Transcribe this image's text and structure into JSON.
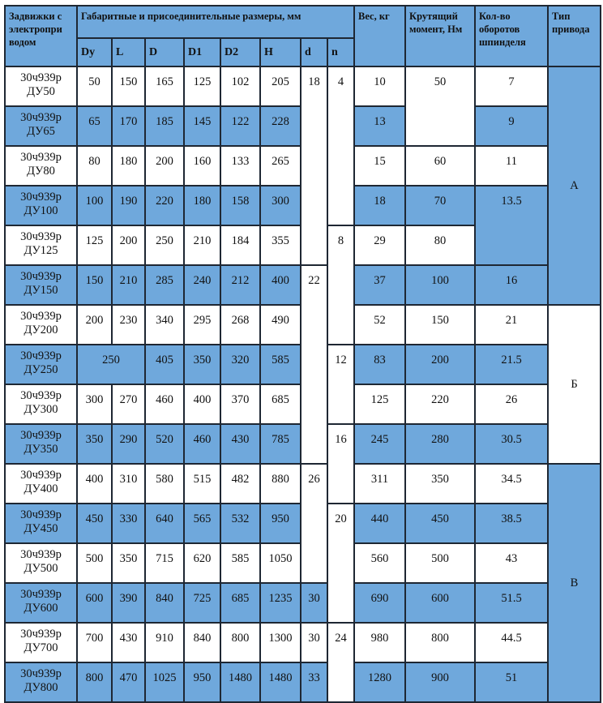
{
  "colors": {
    "header_bg": "#6fa8dc",
    "stripe_bg": "#6fa8dc",
    "row_bg": "#ffffff",
    "border": "#1e2733"
  },
  "header": {
    "name": "Задвижки с электропри водом",
    "dims": "Габаритные и присоединительные размеры, мм",
    "dim_cols": [
      "Dy",
      "L",
      "D",
      "D1",
      "D2",
      "H",
      "d",
      "n"
    ],
    "weight": "Вес, кг",
    "torque": "Крутящий момент, Нм",
    "turns": "Кол-во оборотов шпинделя",
    "drive": "Тип привода"
  },
  "rows": [
    {
      "name": [
        "30ч939р",
        "ДУ50"
      ],
      "cells": [
        {
          "v": "50"
        },
        {
          "v": "150"
        },
        {
          "v": "165"
        },
        {
          "v": "125"
        },
        {
          "v": "102"
        },
        {
          "v": "205"
        },
        {
          "v": "18",
          "rs": 5,
          "blue": false
        },
        {
          "v": "4",
          "rs": 4,
          "blue": false
        },
        {
          "v": "10"
        },
        {
          "v": "50",
          "rs": 2,
          "blue": false
        },
        {
          "v": "7"
        },
        {
          "v": "А",
          "rs": 6,
          "blue": true,
          "type": true
        }
      ]
    },
    {
      "name": [
        "30ч939р",
        "ДУ65"
      ],
      "cells": [
        {
          "v": "65"
        },
        {
          "v": "170"
        },
        {
          "v": "185"
        },
        {
          "v": "145"
        },
        {
          "v": "122"
        },
        {
          "v": "228"
        },
        {
          "v": "13"
        },
        {
          "v": "9"
        }
      ]
    },
    {
      "name": [
        "30ч939р",
        "ДУ80"
      ],
      "cells": [
        {
          "v": "80"
        },
        {
          "v": "180"
        },
        {
          "v": "200"
        },
        {
          "v": "160"
        },
        {
          "v": "133"
        },
        {
          "v": "265"
        },
        {
          "v": "15"
        },
        {
          "v": "60"
        },
        {
          "v": "11"
        }
      ]
    },
    {
      "name": [
        "30ч939р",
        "ДУ100"
      ],
      "cells": [
        {
          "v": "100"
        },
        {
          "v": "190"
        },
        {
          "v": "220"
        },
        {
          "v": "180"
        },
        {
          "v": "158"
        },
        {
          "v": "300"
        },
        {
          "v": "18"
        },
        {
          "v": "70"
        },
        {
          "v": "13.5",
          "rs": 2,
          "blue": true
        }
      ]
    },
    {
      "name": [
        "30ч939р",
        "ДУ125"
      ],
      "cells": [
        {
          "v": "125"
        },
        {
          "v": "200"
        },
        {
          "v": "250"
        },
        {
          "v": "210"
        },
        {
          "v": "184"
        },
        {
          "v": "355"
        },
        {
          "v": "8",
          "rs": 3,
          "blue": false
        },
        {
          "v": "29"
        },
        {
          "v": "80"
        }
      ]
    },
    {
      "name": [
        "30ч939р",
        "ДУ150"
      ],
      "cells": [
        {
          "v": "150"
        },
        {
          "v": "210"
        },
        {
          "v": "285"
        },
        {
          "v": "240"
        },
        {
          "v": "212"
        },
        {
          "v": "400"
        },
        {
          "v": "22",
          "rs": 5,
          "blue": false
        },
        {
          "v": "37"
        },
        {
          "v": "100"
        },
        {
          "v": "16"
        }
      ]
    },
    {
      "name": [
        "30ч939р",
        "ДУ200"
      ],
      "cells": [
        {
          "v": "200"
        },
        {
          "v": "230"
        },
        {
          "v": "340"
        },
        {
          "v": "295"
        },
        {
          "v": "268"
        },
        {
          "v": "490"
        },
        {
          "v": "52"
        },
        {
          "v": "150"
        },
        {
          "v": "21"
        },
        {
          "v": "Б",
          "rs": 4,
          "blue": false,
          "type": true
        }
      ]
    },
    {
      "name": [
        "30ч939р",
        "ДУ250"
      ],
      "cells": [
        {
          "v": "250",
          "cs": 2
        },
        {
          "v": "405"
        },
        {
          "v": "350"
        },
        {
          "v": "320"
        },
        {
          "v": "585"
        },
        {
          "v": "12",
          "rs": 2,
          "blue": false
        },
        {
          "v": "83"
        },
        {
          "v": "200"
        },
        {
          "v": "21.5"
        }
      ]
    },
    {
      "name": [
        "30ч939р",
        "ДУ300"
      ],
      "cells": [
        {
          "v": "300"
        },
        {
          "v": "270"
        },
        {
          "v": "460"
        },
        {
          "v": "400"
        },
        {
          "v": "370"
        },
        {
          "v": "685"
        },
        {
          "v": "125"
        },
        {
          "v": "220"
        },
        {
          "v": "26"
        }
      ]
    },
    {
      "name": [
        "30ч939р",
        "ДУ350"
      ],
      "cells": [
        {
          "v": "350"
        },
        {
          "v": "290"
        },
        {
          "v": "520"
        },
        {
          "v": "460"
        },
        {
          "v": "430"
        },
        {
          "v": "785"
        },
        {
          "v": "16",
          "rs": 2,
          "blue": false
        },
        {
          "v": "245"
        },
        {
          "v": "280"
        },
        {
          "v": "30.5"
        }
      ]
    },
    {
      "name": [
        "30ч939р",
        "ДУ400"
      ],
      "cells": [
        {
          "v": "400"
        },
        {
          "v": "310"
        },
        {
          "v": "580"
        },
        {
          "v": "515"
        },
        {
          "v": "482"
        },
        {
          "v": "880"
        },
        {
          "v": "26",
          "rs": 3,
          "blue": false
        },
        {
          "v": "311"
        },
        {
          "v": "350"
        },
        {
          "v": "34.5"
        },
        {
          "v": "В",
          "rs": 6,
          "blue": true,
          "type": true
        }
      ]
    },
    {
      "name": [
        "30ч939р",
        "ДУ450"
      ],
      "cells": [
        {
          "v": "450"
        },
        {
          "v": "330"
        },
        {
          "v": "640"
        },
        {
          "v": "565"
        },
        {
          "v": "532"
        },
        {
          "v": "950"
        },
        {
          "v": "20",
          "rs": 3,
          "blue": false
        },
        {
          "v": "440"
        },
        {
          "v": "450"
        },
        {
          "v": "38.5"
        }
      ]
    },
    {
      "name": [
        "30ч939р",
        "ДУ500"
      ],
      "cells": [
        {
          "v": "500"
        },
        {
          "v": "350"
        },
        {
          "v": "715"
        },
        {
          "v": "620"
        },
        {
          "v": "585"
        },
        {
          "v": "1050"
        },
        {
          "v": "560"
        },
        {
          "v": "500"
        },
        {
          "v": "43"
        }
      ]
    },
    {
      "name": [
        "30ч939р",
        "ДУ600"
      ],
      "cells": [
        {
          "v": "600"
        },
        {
          "v": "390"
        },
        {
          "v": "840"
        },
        {
          "v": "725"
        },
        {
          "v": "685"
        },
        {
          "v": "1235"
        },
        {
          "v": "30"
        },
        {
          "v": "690"
        },
        {
          "v": "600"
        },
        {
          "v": "51.5"
        }
      ]
    },
    {
      "name": [
        "30ч939р",
        "ДУ700"
      ],
      "cells": [
        {
          "v": "700"
        },
        {
          "v": "430"
        },
        {
          "v": "910"
        },
        {
          "v": "840"
        },
        {
          "v": "800"
        },
        {
          "v": "1300"
        },
        {
          "v": "30"
        },
        {
          "v": "24",
          "rs": 2,
          "blue": false
        },
        {
          "v": "980"
        },
        {
          "v": "800"
        },
        {
          "v": "44.5"
        }
      ]
    },
    {
      "name": [
        "30ч939р",
        "ДУ800"
      ],
      "cells": [
        {
          "v": "800"
        },
        {
          "v": "470"
        },
        {
          "v": "1025"
        },
        {
          "v": "950"
        },
        {
          "v": "1480"
        },
        {
          "v": "1480"
        },
        {
          "v": "33"
        },
        {
          "v": "1280"
        },
        {
          "v": "900"
        },
        {
          "v": "51"
        }
      ]
    }
  ]
}
